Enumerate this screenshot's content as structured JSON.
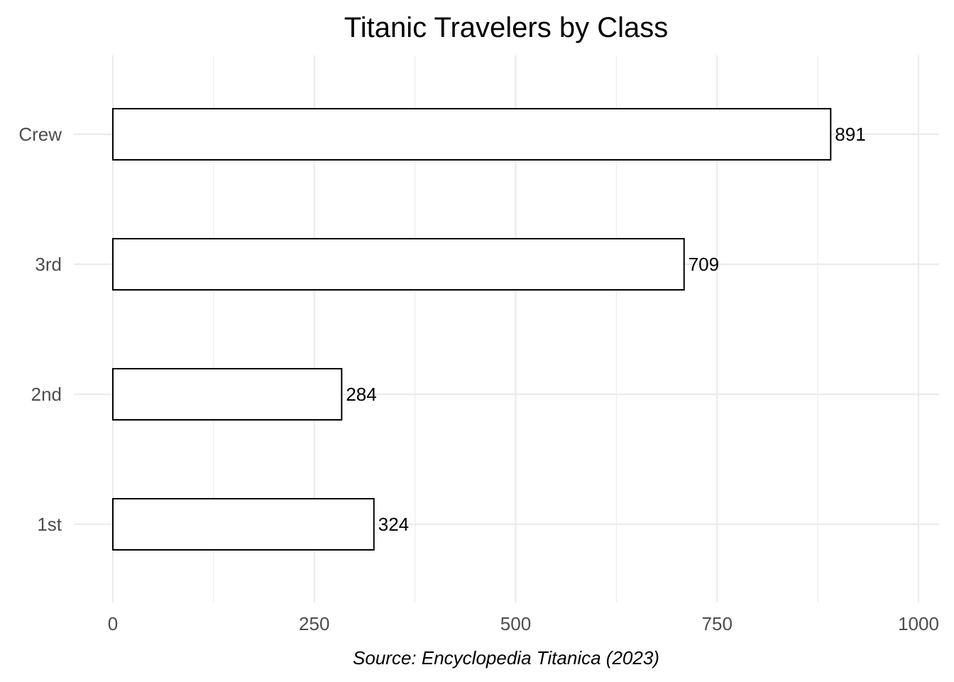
{
  "chart_data": {
    "type": "bar",
    "orientation": "horizontal",
    "title": "Titanic Travelers by Class",
    "caption": "Source: Encyclopedia Titanica (2023)",
    "xlabel": "",
    "ylabel": "",
    "categories": [
      "1st",
      "2nd",
      "3rd",
      "Crew"
    ],
    "values": [
      324,
      284,
      709,
      891
    ],
    "value_labels": [
      "324",
      "284",
      "709",
      "891"
    ],
    "xlim": [
      0,
      1000
    ],
    "x_ticks": [
      0,
      250,
      500,
      750,
      1000
    ],
    "x_tick_labels": [
      "0",
      "250",
      "500",
      "750",
      "1000"
    ],
    "x_minor_ticks": [
      125,
      375,
      625,
      875
    ],
    "grid": true,
    "bar_fill": "#ffffff",
    "bar_outline": "#000000",
    "grid_color": "#ebebeb"
  }
}
